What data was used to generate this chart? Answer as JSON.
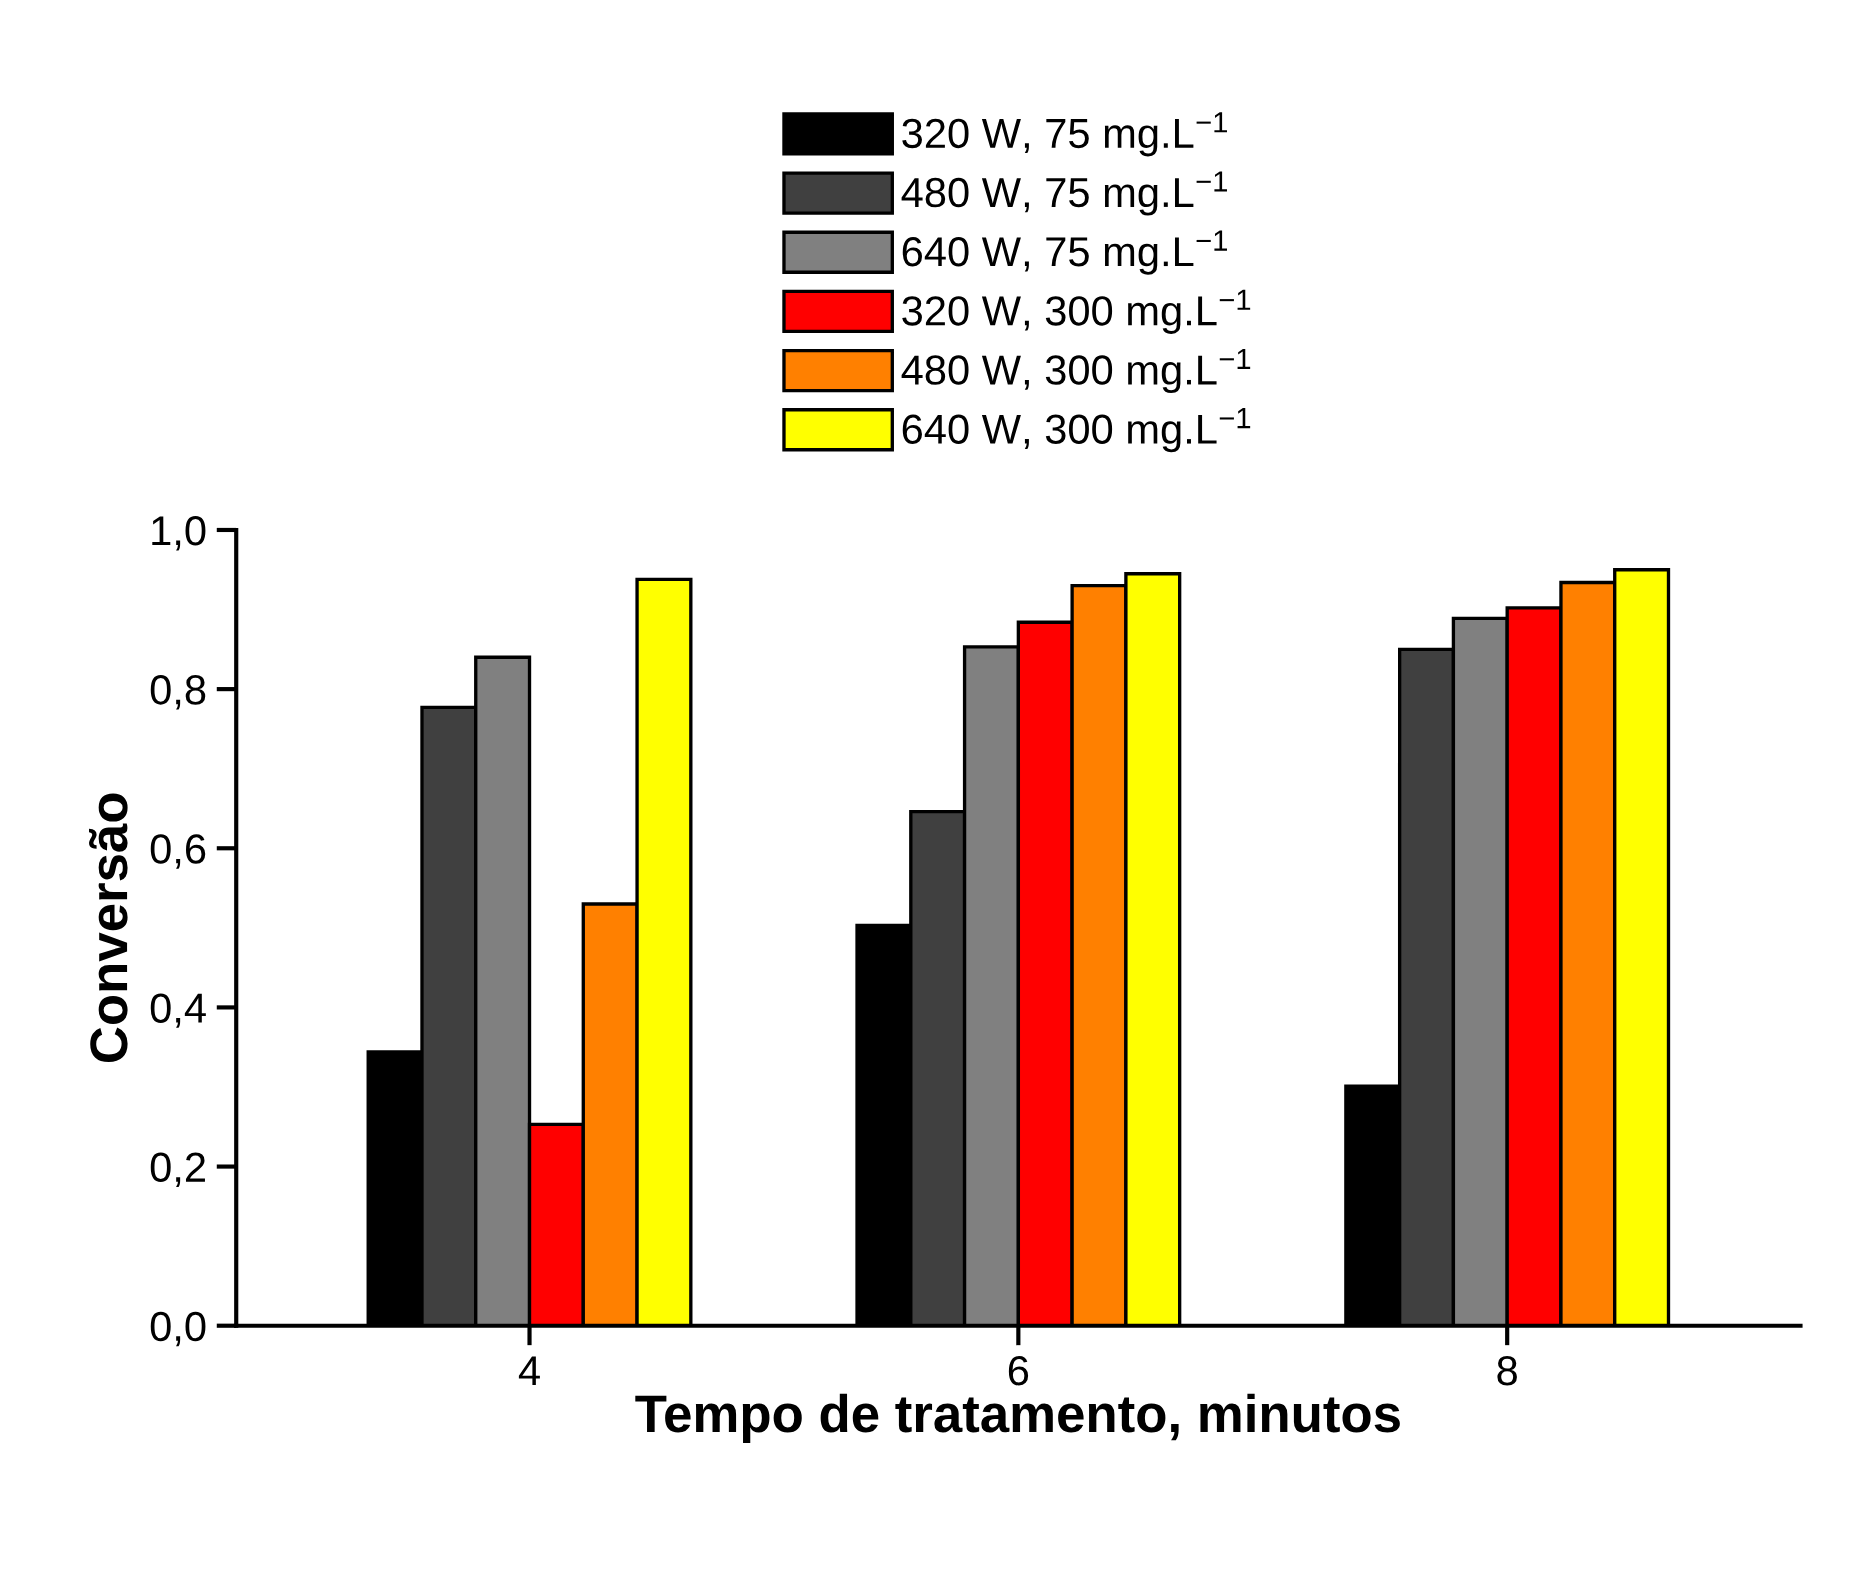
{
  "chart_data": {
    "type": "bar",
    "xlabel": "Tempo de tratamento, minutos",
    "ylabel": "Conversão",
    "x": [
      4,
      6,
      8
    ],
    "xlim": [
      2.8,
      9.2
    ],
    "xticks": [
      4,
      6,
      8
    ],
    "ylim": [
      0,
      1.0
    ],
    "yticks": [
      {
        "value": 0,
        "label": "0,0"
      },
      {
        "value": 0.2,
        "label": "0,2"
      },
      {
        "value": 0.4,
        "label": "0,4"
      },
      {
        "value": 0.6,
        "label": "0,6"
      },
      {
        "value": 0.8,
        "label": "0,8"
      },
      {
        "value": 1.0,
        "label": "1,0"
      }
    ],
    "grid": false,
    "legend": "top",
    "series": [
      {
        "name": "320 W, 75 mg.L$^{−1}$",
        "color": "#000000",
        "values": [
          0.344,
          0.503,
          0.301
        ]
      },
      {
        "name": "480 W, 75 mg.L$^{−1}$",
        "color": "#404040",
        "values": [
          0.777,
          0.646,
          0.85
        ]
      },
      {
        "name": "640 W, 75 mg.L$^{−1}$",
        "color": "#808080",
        "values": [
          0.84,
          0.853,
          0.889
        ]
      },
      {
        "name": "320 W, 300 mg.L$^{−1}$",
        "color": "#ff0000",
        "values": [
          0.253,
          0.884,
          0.902
        ]
      },
      {
        "name": "480 W, 300 mg.L$^{−1}$",
        "color": "#ff8000",
        "values": [
          0.53,
          0.93,
          0.934
        ]
      },
      {
        "name": "640 W, 300 mg.L$^{−1}$",
        "color": "#ffff00",
        "values": [
          0.938,
          0.945,
          0.95
        ]
      }
    ]
  }
}
